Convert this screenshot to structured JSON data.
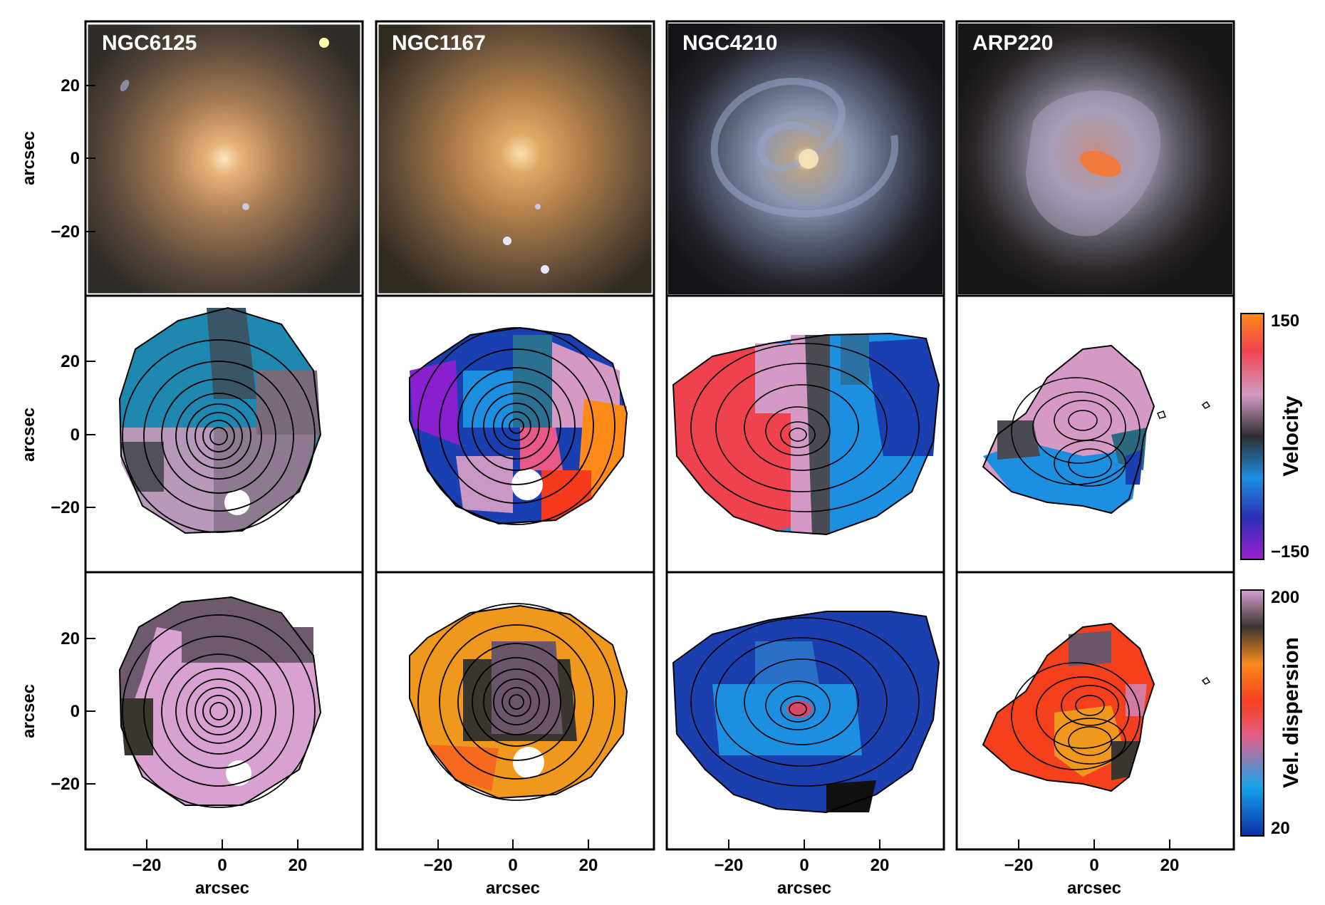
{
  "galaxies": [
    {
      "name": "NGC6125",
      "kind": "elliptical",
      "image_colors": [
        "#fbe6c4",
        "#d9a86a",
        "#a87c54",
        "#5a4a3c",
        "#2e2a26"
      ]
    },
    {
      "name": "NGC1167",
      "kind": "lenticular",
      "image_colors": [
        "#fbe0b0",
        "#d8a25c",
        "#aa7a48",
        "#5c4a36",
        "#30291f"
      ]
    },
    {
      "name": "NGC4210",
      "kind": "spiral",
      "image_colors": [
        "#f6e4b8",
        "#9aa7c0",
        "#6a7694",
        "#2f2f38",
        "#141418"
      ]
    },
    {
      "name": "ARP220",
      "kind": "merger",
      "image_colors": [
        "#f07a3c",
        "#c9a9bd",
        "#8a8a9e",
        "#302c2e",
        "#171516"
      ]
    }
  ],
  "rows": [
    {
      "id": "image",
      "ylabel": "arcsec"
    },
    {
      "id": "velocity",
      "ylabel": "arcsec"
    },
    {
      "id": "dispersion",
      "ylabel": "arcsec"
    }
  ],
  "axes": {
    "x_label": "arcsec",
    "x_ticks": [
      "−20",
      "0",
      "20"
    ],
    "y_ticks": [
      "20",
      "0",
      "−20"
    ]
  },
  "colorbars": {
    "velocity": {
      "label": "Velocity",
      "max": "150",
      "min": "−150",
      "colors": [
        "#9a1fd0",
        "#2d2fb6",
        "#1c8fe0",
        "#2e2e32",
        "#d499c4",
        "#f1434f",
        "#ff8a1a"
      ]
    },
    "dispersion": {
      "label": "Vel. dispersion",
      "max": "200",
      "min": "20",
      "colors": [
        "#0d2fa6",
        "#16a4ea",
        "#df5f8a",
        "#f8401e",
        "#f88a1c",
        "#3a352e",
        "#d9a0d2"
      ]
    }
  }
}
